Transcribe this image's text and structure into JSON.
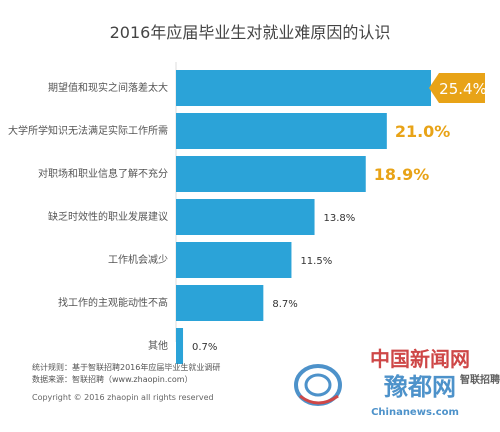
{
  "colors": {
    "bar": "#2ba3d8",
    "highlight": "#e8a317",
    "axis": "#dddddd",
    "watermark_red": "#c62828",
    "watermark_blue": "#2f7fc1"
  },
  "footer": {
    "method": "统计规则：基于智联招聘2016年应届毕业生就业调研",
    "source": "数据来源：智联招聘（www.zhaopin.com）",
    "copyright": "Copyright © 2016 zhaopin all rights reserved"
  },
  "watermark": {
    "cn_top": "中国新闻网",
    "cn_main": "豫都网",
    "url": "Chinanews.com",
    "zhaopin": "智联招聘"
  },
  "chart_data": {
    "type": "bar",
    "orientation": "horizontal",
    "title": "2016年应届毕业生对就业难原因的认识",
    "categories": [
      "期望值和现实之间落差太大",
      "大学所学知识无法满足实际工作所需",
      "对职场和职业信息了解不充分",
      "缺乏时效性的职业发展建议",
      "工作机会减少",
      "找工作的主观能动性不高",
      "其他"
    ],
    "values": [
      25.4,
      21.0,
      18.9,
      13.8,
      11.5,
      8.7,
      0.7
    ],
    "value_labels": [
      "25.4%",
      "21.0%",
      "18.9%",
      "13.8%",
      "11.5%",
      "8.7%",
      "0.7%"
    ],
    "highlighted": [
      0,
      1,
      2
    ],
    "unit": "%",
    "xlim": [
      0,
      25.4
    ],
    "grid": false,
    "legend": "none"
  }
}
